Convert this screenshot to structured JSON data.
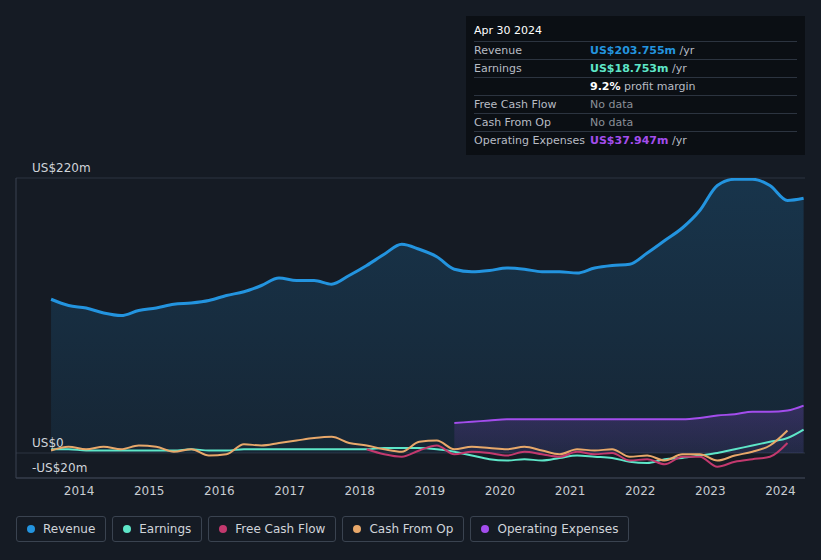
{
  "chart_data": {
    "type": "line",
    "x": [
      2013.6,
      2013.85,
      2014.1,
      2014.35,
      2014.6,
      2014.85,
      2015.1,
      2015.35,
      2015.6,
      2015.85,
      2016.1,
      2016.35,
      2016.6,
      2016.85,
      2017.1,
      2017.35,
      2017.6,
      2017.85,
      2018.1,
      2018.35,
      2018.6,
      2018.85,
      2019.1,
      2019.35,
      2019.6,
      2019.85,
      2020.1,
      2020.35,
      2020.6,
      2020.85,
      2021.1,
      2021.35,
      2021.6,
      2021.85,
      2022.1,
      2022.35,
      2022.6,
      2022.85,
      2023.1,
      2023.35,
      2023.6,
      2023.85,
      2024.1,
      2024.33
    ],
    "series": [
      {
        "name": "Revenue",
        "type": "area",
        "color": "#2394df",
        "values": [
          123,
          118,
          116,
          112,
          110,
          114,
          116,
          119,
          120,
          122,
          126,
          129,
          134,
          140,
          138,
          138,
          135,
          142,
          150,
          159,
          167,
          163,
          157,
          147,
          145,
          146,
          148,
          147,
          145,
          145,
          144,
          148,
          150,
          151,
          160,
          170,
          180,
          194,
          214,
          219,
          219,
          214,
          202,
          203.755
        ]
      },
      {
        "name": "Earnings",
        "type": "line",
        "color": "#5ee6c8",
        "values": [
          3,
          3,
          2,
          2,
          2,
          2,
          2,
          2,
          3,
          2,
          2,
          3,
          3,
          3,
          3,
          3,
          3,
          3,
          3,
          4,
          4,
          4,
          3,
          1,
          -2,
          -5,
          -6,
          -5,
          -6,
          -4,
          -2,
          -3,
          -4,
          -7,
          -8,
          -5,
          -4,
          -2,
          0,
          3,
          6,
          9,
          12,
          18.753
        ]
      },
      {
        "name": "Free Cash Flow",
        "type": "line",
        "color": "#c3396e",
        "values": [
          null,
          null,
          null,
          null,
          null,
          null,
          null,
          null,
          null,
          null,
          null,
          null,
          null,
          null,
          null,
          null,
          null,
          null,
          3,
          -1,
          -3,
          2,
          6,
          -1,
          1,
          0,
          -2,
          1,
          -1,
          -3,
          1,
          -1,
          0,
          -6,
          -5,
          -9,
          -3,
          -3,
          -11,
          -7,
          -5,
          -3,
          8,
          null
        ]
      },
      {
        "name": "Cash From Op",
        "type": "line",
        "color": "#e8a86a",
        "values": [
          2,
          5,
          3,
          5,
          3,
          6,
          5,
          1,
          3,
          -2,
          -1,
          7,
          6,
          8,
          10,
          12,
          13,
          8,
          6,
          3,
          1,
          9,
          10,
          3,
          5,
          4,
          3,
          5,
          2,
          -1,
          3,
          2,
          3,
          -3,
          -2,
          -6,
          -1,
          -1,
          -6,
          -2,
          1,
          6,
          18,
          null
        ]
      },
      {
        "name": "Operating Expenses",
        "type": "area",
        "color": "#a34ded",
        "values": [
          null,
          null,
          null,
          null,
          null,
          null,
          null,
          null,
          null,
          null,
          null,
          null,
          null,
          null,
          null,
          null,
          null,
          null,
          null,
          null,
          null,
          null,
          null,
          24,
          25,
          26,
          27,
          27,
          27,
          27,
          27,
          27,
          27,
          27,
          27,
          27,
          27,
          28,
          30,
          31,
          33,
          33,
          34,
          37.947
        ]
      }
    ],
    "xlim": [
      2013.1,
      2024.35
    ],
    "xticks": [
      2014,
      2015,
      2016,
      2017,
      2018,
      2019,
      2020,
      2021,
      2022,
      2023,
      2024
    ],
    "ylim": [
      -20,
      220
    ],
    "yticks": [
      {
        "value": -20,
        "label": "-US$20m"
      },
      {
        "value": 0,
        "label": "US$0"
      },
      {
        "value": 220,
        "label": "US$220m"
      }
    ],
    "grid": true,
    "legend": "bottom",
    "annotations": [
      {
        "title": "Apr 30 2024",
        "rows": [
          {
            "label": "Revenue",
            "value": "US$203.755m",
            "unit": "/yr",
            "color": "#2394df"
          },
          {
            "label": "Earnings",
            "value": "US$18.753m",
            "unit": "/yr",
            "color": "#5ee6c8"
          },
          {
            "value": "9.2%",
            "unit": "profit margin",
            "color": "#ffffff"
          },
          {
            "label": "Free Cash Flow",
            "value": "No data",
            "color": "#8a8f98"
          },
          {
            "label": "Cash From Op",
            "value": "No data",
            "color": "#8a8f98"
          },
          {
            "label": "Operating Expenses",
            "value": "US$37.947m",
            "unit": "/yr",
            "color": "#a34ded"
          }
        ]
      }
    ]
  }
}
